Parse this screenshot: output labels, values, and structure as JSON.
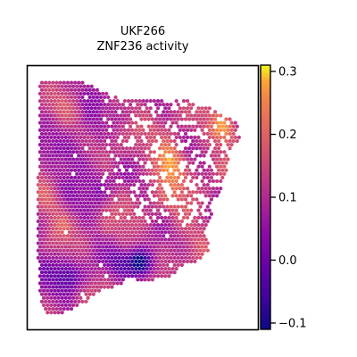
{
  "chart_data": {
    "type": "scatter",
    "title": "UKF266",
    "subtitle": "ZNF236 activity",
    "xlabel": "",
    "ylabel": "",
    "grid": false,
    "axis_ticks_visible": false,
    "colormap": "plasma",
    "colorbar": {
      "range": [
        -0.11,
        0.31
      ],
      "ticks": [
        -0.1,
        0.0,
        0.1,
        0.2,
        0.3
      ],
      "tick_labels": [
        "−0.1",
        "0.0",
        "0.1",
        "0.2",
        "0.3"
      ],
      "position": "right"
    },
    "x_range": [
      0,
      100
    ],
    "y_range": [
      0,
      100
    ],
    "point_marker": "hexagon",
    "approx_point_count": 3000,
    "notes_visual": {
      "dense_tissue_region": "left and bottom-left portion of section",
      "high_activity_hotspots": [
        {
          "x": 85,
          "y": 76,
          "value": 0.3
        },
        {
          "x": 61,
          "y": 61,
          "value": 0.25
        },
        {
          "x": 62,
          "y": 67,
          "value": 0.22
        }
      ],
      "low_activity_hotspots": [
        {
          "x": 50,
          "y": 24,
          "value": -0.1
        },
        {
          "x": 18,
          "y": 20,
          "value": -0.02
        },
        {
          "x": 40,
          "y": 25,
          "value": 0.0
        }
      ]
    }
  }
}
